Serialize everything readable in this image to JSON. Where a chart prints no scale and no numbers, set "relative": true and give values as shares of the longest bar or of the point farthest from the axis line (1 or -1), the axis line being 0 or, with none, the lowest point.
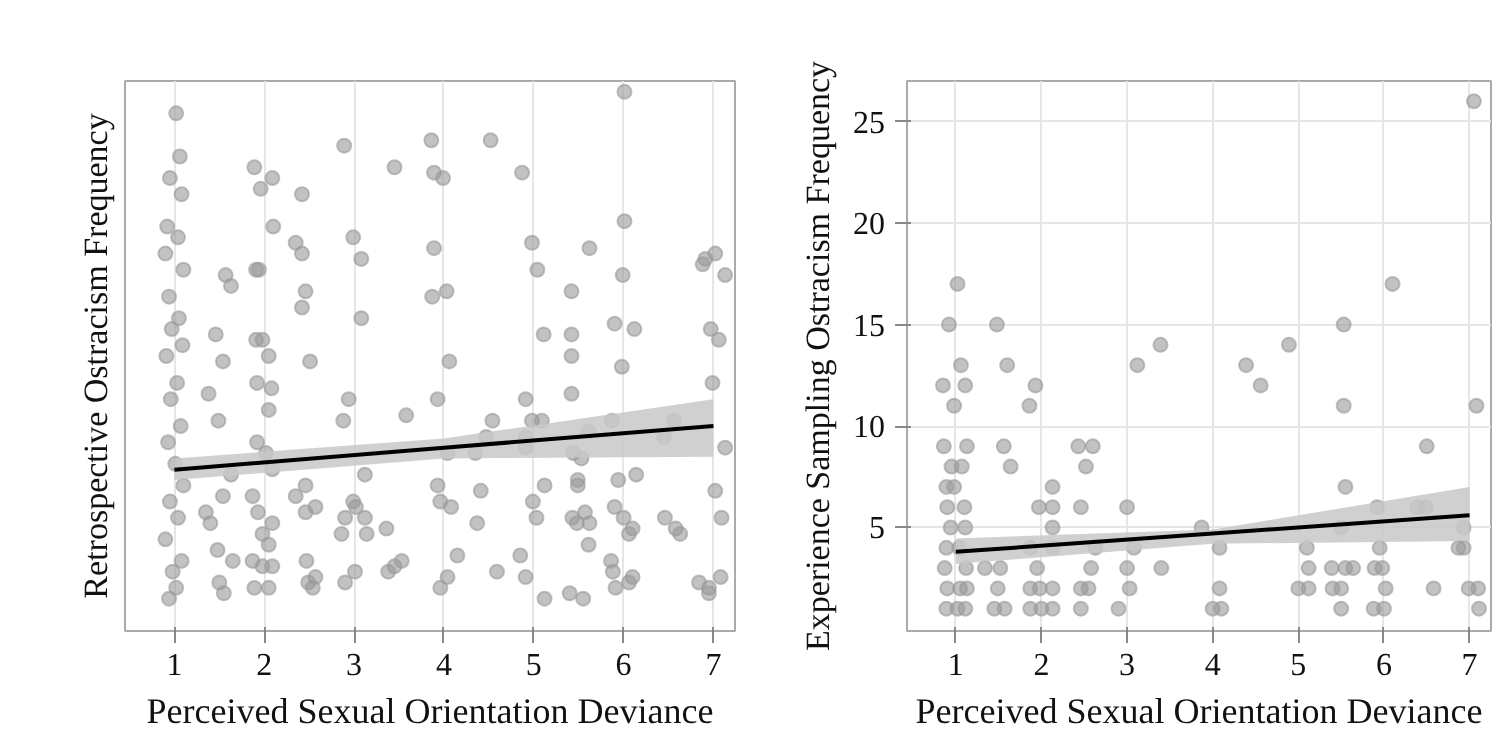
{
  "chart_data": [
    {
      "type": "scatter",
      "xlabel": "Perceived Sexual Orientation Deviance",
      "ylabel": "Retrospective Ostracism Frequency",
      "relative": true,
      "tick_labels": "x",
      "grid": "x",
      "xlim": [
        0.45,
        7.24
      ],
      "xticks": [
        1,
        2,
        3,
        4,
        5,
        6,
        7
      ],
      "series": [
        {
          "marker": "circle",
          "color": "#9a9a9a",
          "x": [
            1.02,
            1.06,
            0.95,
            1.08,
            0.92,
            1.04,
            0.9,
            1.1,
            0.94,
            1.05,
            0.97,
            1.09,
            0.91,
            1.03,
            0.96,
            1.07,
            0.93,
            1.01,
            1.1,
            0.95,
            1.04,
            0.9,
            1.08,
            0.98,
            1.02,
            0.94,
            1.35,
            1.4,
            1.48,
            1.5,
            1.38,
            1.46,
            1.49,
            1.54,
            1.57,
            1.63,
            1.54,
            1.63,
            1.65,
            1.55,
            1.89,
            1.96,
            2.09,
            2.1,
            1.91,
            1.94,
            1.91,
            1.98,
            2.05,
            1.92,
            2.08,
            2.05,
            1.92,
            2.02,
            2.09,
            1.87,
            1.93,
            2.09,
            1.98,
            2.05,
            1.87,
            1.98,
            2.09,
            1.89,
            2.05,
            2.42,
            2.35,
            2.42,
            2.46,
            2.42,
            2.51,
            2.35,
            2.46,
            2.57,
            2.46,
            2.47,
            2.49,
            2.57,
            2.54,
            2.89,
            2.99,
            3.08,
            3.08,
            2.94,
            2.88,
            3.12,
            2.99,
            3.02,
            2.9,
            3.12,
            2.86,
            3.14,
            3.01,
            2.9,
            3.36,
            3.38,
            3.45,
            3.53,
            3.58,
            3.45,
            3.86,
            3.89,
            3.99,
            3.89,
            3.87,
            4.03,
            4.06,
            3.93,
            4.04,
            3.93,
            3.96,
            4.08,
            4.15,
            3.96,
            4.04,
            4.37,
            4.41,
            4.35,
            4.47,
            4.54,
            4.52,
            4.59,
            4.87,
            4.98,
            5.04,
            5.11,
            4.91,
            4.98,
            5.09,
            4.91,
            4.91,
            5.12,
            4.99,
            5.03,
            4.85,
            4.91,
            5.12,
            5.4,
            5.55,
            5.42,
            5.42,
            5.42,
            5.42,
            5.62,
            5.44,
            5.53,
            5.49,
            5.49,
            5.57,
            5.43,
            5.62,
            5.48,
            5.61,
            5.61,
            6.01,
            6.01,
            5.99,
            5.9,
            6.12,
            5.98,
            5.87,
            5.94,
            6.14,
            5.9,
            6.0,
            6.1,
            6.06,
            5.86,
            5.88,
            6.1,
            6.06,
            5.91,
            6.46,
            6.58,
            6.63,
            6.56,
            6.45,
            6.88,
            6.91,
            7.02,
            7.13,
            6.97,
            7.06,
            6.99,
            7.13,
            7.02,
            7.09,
            6.84,
            6.95,
            6.95,
            7.08
          ],
          "values": [
            0.96,
            0.88,
            0.84,
            0.81,
            0.75,
            0.73,
            0.7,
            0.67,
            0.62,
            0.58,
            0.56,
            0.53,
            0.51,
            0.46,
            0.43,
            0.38,
            0.35,
            0.31,
            0.27,
            0.24,
            0.21,
            0.17,
            0.13,
            0.11,
            0.08,
            0.06,
            0.22,
            0.2,
            0.15,
            0.09,
            0.44,
            0.55,
            0.39,
            0.5,
            0.66,
            0.64,
            0.25,
            0.29,
            0.13,
            0.07,
            0.86,
            0.82,
            0.84,
            0.75,
            0.67,
            0.67,
            0.54,
            0.54,
            0.51,
            0.46,
            0.45,
            0.41,
            0.35,
            0.33,
            0.3,
            0.25,
            0.22,
            0.2,
            0.18,
            0.16,
            0.13,
            0.12,
            0.12,
            0.08,
            0.08,
            0.81,
            0.72,
            0.7,
            0.63,
            0.6,
            0.5,
            0.25,
            0.27,
            0.23,
            0.22,
            0.13,
            0.09,
            0.1,
            0.08,
            0.9,
            0.73,
            0.69,
            0.58,
            0.43,
            0.39,
            0.29,
            0.24,
            0.23,
            0.21,
            0.21,
            0.18,
            0.18,
            0.11,
            0.09,
            0.19,
            0.11,
            0.12,
            0.13,
            0.4,
            0.86,
            0.91,
            0.85,
            0.84,
            0.71,
            0.62,
            0.63,
            0.5,
            0.43,
            0.33,
            0.27,
            0.24,
            0.23,
            0.14,
            0.08,
            0.1,
            0.2,
            0.26,
            0.33,
            0.36,
            0.39,
            0.91,
            0.11,
            0.85,
            0.72,
            0.67,
            0.55,
            0.43,
            0.39,
            0.39,
            0.36,
            0.34,
            0.27,
            0.24,
            0.21,
            0.14,
            0.1,
            0.06,
            0.07,
            0.06,
            0.63,
            0.55,
            0.51,
            0.44,
            0.71,
            0.33,
            0.32,
            0.28,
            0.27,
            0.22,
            0.21,
            0.2,
            0.2,
            0.16,
            0.37,
            1.0,
            0.76,
            0.66,
            0.57,
            0.56,
            0.49,
            0.39,
            0.28,
            0.29,
            0.23,
            0.21,
            0.19,
            0.18,
            0.13,
            0.11,
            0.1,
            0.09,
            0.08,
            0.21,
            0.19,
            0.18,
            0.39,
            0.36,
            0.68,
            0.69,
            0.7,
            0.66,
            0.56,
            0.54,
            0.46,
            0.34,
            0.26,
            0.21,
            0.09,
            0.08,
            0.07,
            0.1
          ]
        },
        {
          "type": "line",
          "color": "#000000",
          "x": [
            1,
            4,
            7
          ],
          "values": [
            0.299,
            0.34,
            0.38
          ],
          "lower": [
            0.28,
            0.32,
            0.323
          ],
          "upper": [
            0.32,
            0.357,
            0.43
          ]
        }
      ]
    },
    {
      "type": "scatter",
      "xlabel": "Perceived Sexual Orientation Deviance",
      "ylabel": "Experience Sampling Ostracism Frequency",
      "grid": true,
      "xlim": [
        0.43,
        7.25
      ],
      "xticks": [
        1,
        2,
        3,
        4,
        5,
        6,
        7
      ],
      "ylim": [
        -0.1,
        27
      ],
      "yticks": [
        5,
        10,
        15,
        20,
        25
      ],
      "series": [
        {
          "marker": "circle",
          "color": "#9a9a9a",
          "x": [
            0.85,
            0.92,
            1.02,
            1.06,
            1.11,
            0.98,
            0.86,
            1.13,
            0.95,
            1.07,
            0.89,
            0.98,
            0.9,
            1.1,
            0.94,
            1.11,
            0.89,
            1.04,
            0.87,
            1.12,
            0.9,
            1.05,
            1.13,
            0.89,
            1.02,
            1.11,
            1.48,
            1.6,
            1.56,
            1.64,
            1.34,
            1.52,
            1.49,
            1.45,
            1.57,
            1.93,
            1.86,
            1.97,
            2.13,
            2.13,
            2.13,
            2.13,
            1.87,
            1.95,
            1.87,
            1.98,
            2.13,
            1.87,
            2.0,
            2.13,
            2.43,
            2.6,
            2.52,
            2.46,
            2.63,
            2.58,
            2.46,
            2.55,
            2.46,
            3.12,
            3.39,
            3.0,
            3.08,
            3.0,
            3.4,
            3.03,
            2.9,
            3.87,
            4.08,
            4.08,
            4.0,
            4.1,
            4.39,
            4.56,
            4.89,
            5.1,
            5.12,
            5.0,
            5.12,
            5.39,
            5.4,
            5.5,
            5.5,
            5.53,
            5.53,
            5.55,
            5.5,
            5.55,
            5.64,
            6.1,
            5.92,
            5.95,
            5.89,
            5.98,
            6.02,
            5.88,
            6.0,
            6.5,
            6.39,
            6.49,
            6.58,
            7.05,
            7.08,
            6.93,
            6.87,
            6.93,
            6.99,
            7.1,
            7.11
          ],
          "values": [
            12,
            15,
            17,
            13,
            12,
            11,
            9,
            9,
            8,
            8,
            7,
            7,
            6,
            6,
            5,
            5,
            4,
            4,
            3,
            3,
            2,
            2,
            2,
            1,
            1,
            1,
            15,
            13,
            9,
            8,
            3,
            3,
            2,
            1,
            1,
            12,
            11,
            6,
            7,
            6,
            5,
            4,
            4,
            3,
            2,
            2,
            2,
            1,
            1,
            1,
            9,
            9,
            8,
            6,
            4,
            3,
            2,
            2,
            1,
            13,
            14,
            6,
            4,
            3,
            3,
            2,
            1,
            5,
            4,
            2,
            1,
            1,
            13,
            12,
            14,
            4,
            3,
            2,
            2,
            3,
            2,
            2,
            1,
            15,
            11,
            7,
            5,
            3,
            3,
            17,
            6,
            4,
            3,
            3,
            2,
            1,
            1,
            9,
            6,
            6,
            2,
            26,
            11,
            5,
            4,
            4,
            2,
            2,
            1
          ]
        },
        {
          "type": "line",
          "color": "#000000",
          "x": [
            1,
            4,
            7
          ],
          "values": [
            3.8,
            4.7,
            5.6
          ],
          "lower": [
            3.2,
            4.2,
            4.33
          ],
          "upper": [
            4.46,
            4.9,
            7.0
          ]
        }
      ]
    }
  ]
}
